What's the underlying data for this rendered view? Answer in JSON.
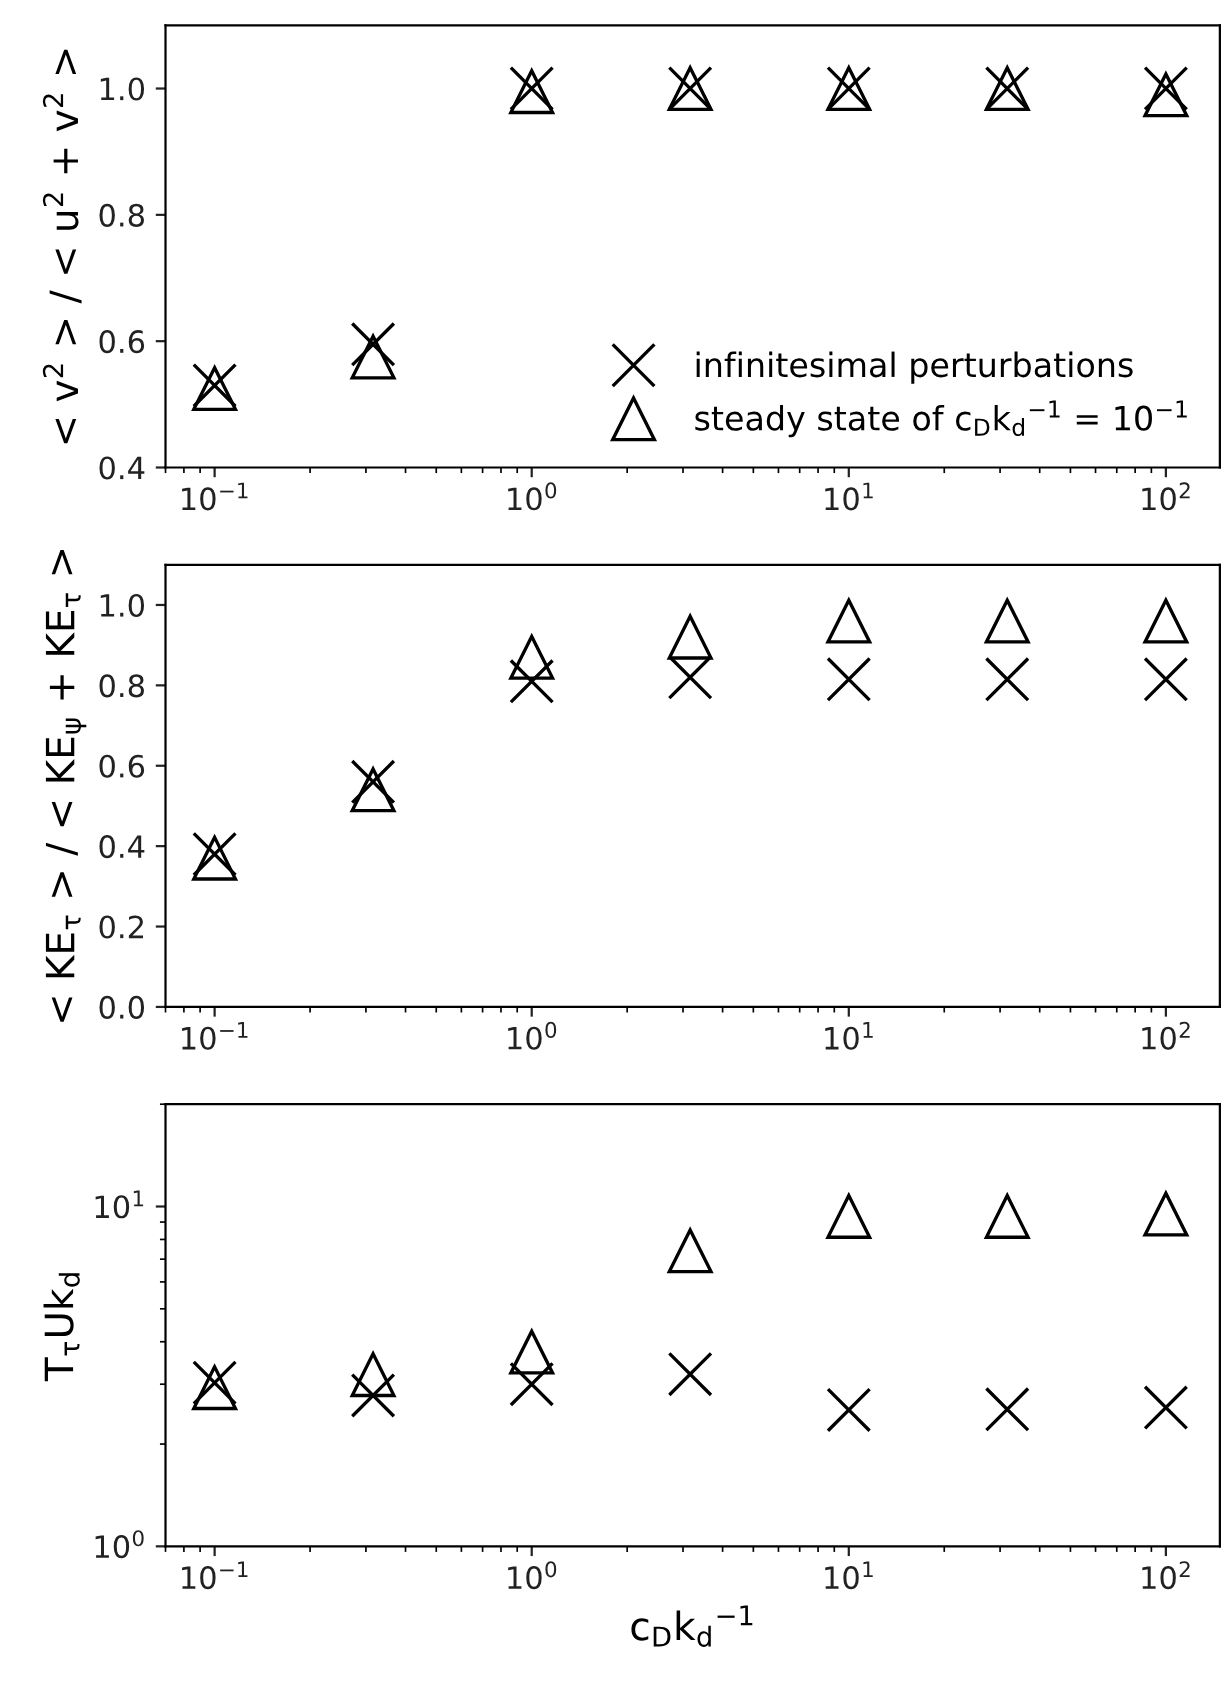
{
  "chart_data": [
    {
      "type": "scatter",
      "ylabel": "< v$^{2}$ > / < u$^{2}$ + v$^{2}$ >",
      "log": "x",
      "legend": "bottom right",
      "x": [
        0.1,
        0.316,
        1,
        3.16,
        10,
        31.6,
        100
      ],
      "xlim": [
        0.07,
        148
      ],
      "xticks": [
        {
          "value": 0.1,
          "label": "10$^{−1}$"
        },
        {
          "value": 1,
          "label": "10$^{0}$"
        },
        {
          "value": 10,
          "label": "10$^{1}$"
        },
        {
          "value": 100,
          "label": "10$^{2}$"
        }
      ],
      "ylim": [
        0.4,
        1.1
      ],
      "yticks": [
        {
          "value": 0.4,
          "label": "0.4"
        },
        {
          "value": 0.6,
          "label": "0.6"
        },
        {
          "value": 0.8,
          "label": "0.8"
        },
        {
          "value": 1.0,
          "label": "1.0"
        }
      ],
      "series": [
        {
          "name": "infinitesimal perturbations",
          "color": "#000000",
          "marker": "cross",
          "values": [
            0.53,
            0.595,
            1.0,
            1.0,
            1.0,
            1.0,
            1.0
          ]
        },
        {
          "name": "steady state of c$_{D}$k$_{d}$$^{−1}$ = 10$^{−1}$",
          "color": "#000000",
          "marker": "triangle",
          "values": [
            0.525,
            0.575,
            0.995,
            1.0,
            1.0,
            1.0,
            0.99
          ]
        }
      ]
    },
    {
      "type": "scatter",
      "ylabel": "< KE$_{τ}$ > / < KE$_{ψ}$ + KE$_{τ}$ >",
      "log": "x",
      "x": [
        0.1,
        0.316,
        1,
        3.16,
        10,
        31.6,
        100
      ],
      "xlim": [
        0.07,
        148
      ],
      "xticks": [
        {
          "value": 0.1,
          "label": "10$^{−1}$"
        },
        {
          "value": 1,
          "label": "10$^{0}$"
        },
        {
          "value": 10,
          "label": "10$^{1}$"
        },
        {
          "value": 100,
          "label": "10$^{2}$"
        }
      ],
      "ylim": [
        0,
        1.1
      ],
      "yticks": [
        {
          "value": 0,
          "label": "0.0"
        },
        {
          "value": 0.2,
          "label": "0.2"
        },
        {
          "value": 0.4,
          "label": "0.4"
        },
        {
          "value": 0.6,
          "label": "0.6"
        },
        {
          "value": 0.8,
          "label": "0.8"
        },
        {
          "value": 1.0,
          "label": "1.0"
        }
      ],
      "series": [
        {
          "color": "#000000",
          "marker": "cross",
          "values": [
            0.38,
            0.56,
            0.81,
            0.82,
            0.815,
            0.815,
            0.815
          ]
        },
        {
          "color": "#000000",
          "marker": "triangle",
          "values": [
            0.37,
            0.54,
            0.87,
            0.92,
            0.96,
            0.96,
            0.96
          ]
        }
      ]
    },
    {
      "type": "scatter",
      "ylabel": "T$_{τ}$Uk$_{d}$",
      "xlabel": "c$_{D}$k$_{d}$$^{−1}$",
      "log": "xy",
      "x": [
        0.1,
        0.316,
        1,
        3.16,
        10,
        31.6,
        100
      ],
      "xlim": [
        0.07,
        148
      ],
      "xticks": [
        {
          "value": 0.1,
          "label": "10$^{−1}$"
        },
        {
          "value": 1,
          "label": "10$^{0}$"
        },
        {
          "value": 10,
          "label": "10$^{1}$"
        },
        {
          "value": 100,
          "label": "10$^{2}$"
        }
      ],
      "ylim": [
        1,
        20
      ],
      "yticks": [
        {
          "value": 1,
          "label": "10$^{0}$"
        },
        {
          "value": 10,
          "label": "10$^{1}$"
        }
      ],
      "series": [
        {
          "color": "#000000",
          "marker": "cross",
          "values": [
            3.03,
            2.78,
            3.0,
            3.21,
            2.52,
            2.53,
            2.56
          ]
        },
        {
          "color": "#000000",
          "marker": "triangle",
          "values": [
            2.93,
            3.2,
            3.73,
            7.41,
            9.35,
            9.35,
            9.5
          ]
        }
      ]
    }
  ]
}
